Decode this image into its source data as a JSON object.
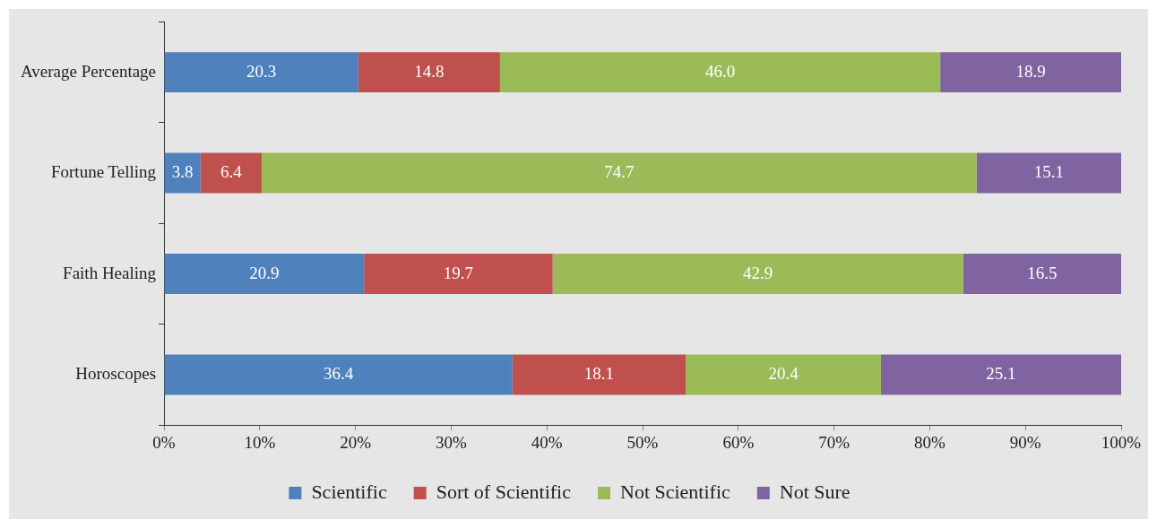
{
  "chart_data": {
    "type": "bar",
    "orientation": "horizontal",
    "stacked": true,
    "categories": [
      "Average Percentage",
      "Fortune Telling",
      "Faith Healing",
      "Horoscopes"
    ],
    "series": [
      {
        "name": "Scientific",
        "color": "#4f81bd",
        "values": [
          20.3,
          3.8,
          20.9,
          36.4
        ],
        "value_labels": [
          "20.3",
          "3.8",
          "20.9",
          "36.4"
        ]
      },
      {
        "name": "Sort of Scientific",
        "color": "#c0504d",
        "values": [
          14.8,
          6.4,
          19.7,
          18.1
        ],
        "value_labels": [
          "14.8",
          "6.4",
          "19.7",
          "18.1"
        ]
      },
      {
        "name": "Not Scientific",
        "color": "#9bbb59",
        "values": [
          46.0,
          74.7,
          42.9,
          20.4
        ],
        "value_labels": [
          "46.0",
          "74.7",
          "42.9",
          "20.4"
        ]
      },
      {
        "name": "Not Sure",
        "color": "#8064a2",
        "values": [
          18.9,
          15.1,
          16.5,
          25.1
        ],
        "value_labels": [
          "18.9",
          "15.1",
          "16.5",
          "25.1"
        ]
      }
    ],
    "xlim": [
      0,
      100
    ],
    "xticks": [
      {
        "value": 0,
        "label": "0%"
      },
      {
        "value": 10,
        "label": "10%"
      },
      {
        "value": 20,
        "label": "20%"
      },
      {
        "value": 30,
        "label": "30%"
      },
      {
        "value": 40,
        "label": "40%"
      },
      {
        "value": 50,
        "label": "50%"
      },
      {
        "value": 60,
        "label": "60%"
      },
      {
        "value": 70,
        "label": "70%"
      },
      {
        "value": 80,
        "label": "80%"
      },
      {
        "value": 90,
        "label": "90%"
      },
      {
        "value": 100,
        "label": "100%"
      }
    ],
    "grid": false,
    "legend": "bottom"
  }
}
